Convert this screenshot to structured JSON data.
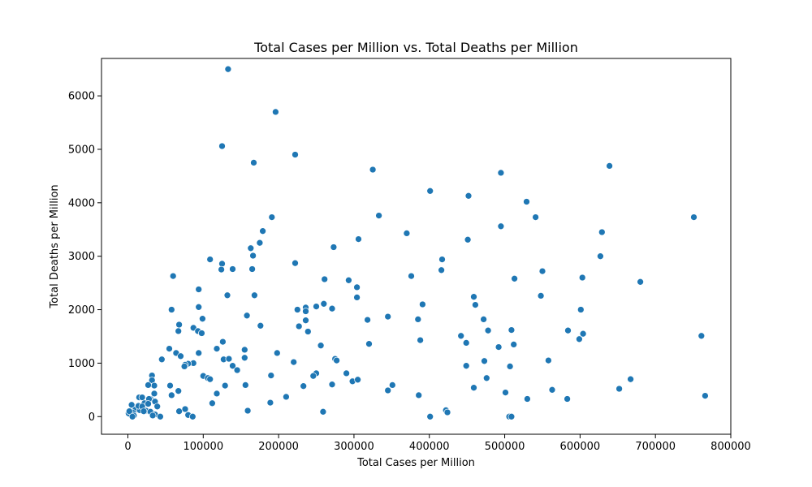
{
  "chart_data": {
    "type": "scatter",
    "title": "Total Cases per Million vs. Total Deaths per Million",
    "xlabel": "Total Cases per Million",
    "ylabel": "Total Deaths per Million",
    "xlim": [
      -35000,
      800000
    ],
    "ylim": [
      -330,
      6700
    ],
    "xticks": [
      0,
      100000,
      200000,
      300000,
      400000,
      500000,
      600000,
      700000,
      800000
    ],
    "xtick_labels": [
      "0",
      "100000",
      "200000",
      "300000",
      "400000",
      "500000",
      "600000",
      "700000",
      "800000"
    ],
    "yticks": [
      0,
      1000,
      2000,
      3000,
      4000,
      5000,
      6000
    ],
    "ytick_labels": [
      "0",
      "1000",
      "2000",
      "3000",
      "4000",
      "5000",
      "6000"
    ],
    "grid": false,
    "marker_color": "#1f77b4",
    "points": [
      [
        133000,
        6500
      ],
      [
        196000,
        5700
      ],
      [
        125000,
        5060
      ],
      [
        222000,
        4900
      ],
      [
        167000,
        4750
      ],
      [
        325000,
        4620
      ],
      [
        495000,
        4560
      ],
      [
        639000,
        4690
      ],
      [
        401000,
        4220
      ],
      [
        452000,
        4130
      ],
      [
        529000,
        4020
      ],
      [
        191000,
        3730
      ],
      [
        333000,
        3760
      ],
      [
        541000,
        3730
      ],
      [
        751000,
        3730
      ],
      [
        495000,
        3560
      ],
      [
        370000,
        3430
      ],
      [
        179000,
        3470
      ],
      [
        629000,
        3450
      ],
      [
        306000,
        3320
      ],
      [
        451000,
        3310
      ],
      [
        175000,
        3250
      ],
      [
        163000,
        3150
      ],
      [
        273000,
        3170
      ],
      [
        166000,
        3010
      ],
      [
        627000,
        3000
      ],
      [
        109000,
        2940
      ],
      [
        417000,
        2940
      ],
      [
        125000,
        2860
      ],
      [
        222000,
        2870
      ],
      [
        124000,
        2750
      ],
      [
        139000,
        2760
      ],
      [
        165000,
        2760
      ],
      [
        416000,
        2740
      ],
      [
        550000,
        2720
      ],
      [
        60000,
        2630
      ],
      [
        376000,
        2630
      ],
      [
        261000,
        2570
      ],
      [
        293000,
        2550
      ],
      [
        513000,
        2580
      ],
      [
        603000,
        2600
      ],
      [
        680000,
        2520
      ],
      [
        304000,
        2420
      ],
      [
        94000,
        2380
      ],
      [
        132000,
        2270
      ],
      [
        168000,
        2270
      ],
      [
        304000,
        2230
      ],
      [
        459000,
        2240
      ],
      [
        548000,
        2260
      ],
      [
        260000,
        2110
      ],
      [
        391000,
        2100
      ],
      [
        461000,
        2090
      ],
      [
        94000,
        2050
      ],
      [
        236000,
        2040
      ],
      [
        250000,
        2060
      ],
      [
        271000,
        2020
      ],
      [
        58000,
        2000
      ],
      [
        225000,
        2000
      ],
      [
        236000,
        1970
      ],
      [
        601000,
        2000
      ],
      [
        158000,
        1890
      ],
      [
        345000,
        1870
      ],
      [
        99000,
        1830
      ],
      [
        236000,
        1800
      ],
      [
        318000,
        1810
      ],
      [
        385000,
        1820
      ],
      [
        472000,
        1820
      ],
      [
        68000,
        1720
      ],
      [
        176000,
        1700
      ],
      [
        227000,
        1690
      ],
      [
        87000,
        1660
      ],
      [
        93000,
        1600
      ],
      [
        67000,
        1600
      ],
      [
        98000,
        1560
      ],
      [
        239000,
        1590
      ],
      [
        478000,
        1610
      ],
      [
        509000,
        1620
      ],
      [
        584000,
        1610
      ],
      [
        442000,
        1510
      ],
      [
        604000,
        1550
      ],
      [
        761000,
        1510
      ],
      [
        599000,
        1450
      ],
      [
        388000,
        1430
      ],
      [
        126000,
        1400
      ],
      [
        320000,
        1360
      ],
      [
        449000,
        1380
      ],
      [
        512000,
        1350
      ],
      [
        256000,
        1330
      ],
      [
        55000,
        1270
      ],
      [
        118000,
        1270
      ],
      [
        155000,
        1250
      ],
      [
        492000,
        1300
      ],
      [
        64000,
        1190
      ],
      [
        94000,
        1190
      ],
      [
        198000,
        1190
      ],
      [
        70000,
        1130
      ],
      [
        45000,
        1070
      ],
      [
        127000,
        1070
      ],
      [
        134000,
        1080
      ],
      [
        155000,
        1100
      ],
      [
        275000,
        1080
      ],
      [
        277000,
        1050
      ],
      [
        220000,
        1020
      ],
      [
        473000,
        1040
      ],
      [
        558000,
        1050
      ],
      [
        87000,
        1000
      ],
      [
        80000,
        990
      ],
      [
        76000,
        970
      ],
      [
        75000,
        940
      ],
      [
        139000,
        950
      ],
      [
        449000,
        950
      ],
      [
        507000,
        940
      ],
      [
        145000,
        870
      ],
      [
        250000,
        810
      ],
      [
        290000,
        810
      ],
      [
        246000,
        760
      ],
      [
        190000,
        770
      ],
      [
        100000,
        760
      ],
      [
        106000,
        720
      ],
      [
        109000,
        700
      ],
      [
        298000,
        660
      ],
      [
        305000,
        690
      ],
      [
        32000,
        770
      ],
      [
        32000,
        680
      ],
      [
        35000,
        580
      ],
      [
        27000,
        590
      ],
      [
        56000,
        580
      ],
      [
        67000,
        480
      ],
      [
        233000,
        570
      ],
      [
        271000,
        600
      ],
      [
        351000,
        590
      ],
      [
        129000,
        580
      ],
      [
        156000,
        590
      ],
      [
        459000,
        540
      ],
      [
        476000,
        720
      ],
      [
        667000,
        700
      ],
      [
        345000,
        490
      ],
      [
        386000,
        400
      ],
      [
        501000,
        450
      ],
      [
        563000,
        500
      ],
      [
        652000,
        520
      ],
      [
        530000,
        330
      ],
      [
        583000,
        330
      ],
      [
        766000,
        390
      ],
      [
        58000,
        400
      ],
      [
        118000,
        430
      ],
      [
        210000,
        370
      ],
      [
        15000,
        360
      ],
      [
        19000,
        360
      ],
      [
        30000,
        330
      ],
      [
        35000,
        430
      ],
      [
        36000,
        280
      ],
      [
        22000,
        250
      ],
      [
        14000,
        210
      ],
      [
        5000,
        220
      ],
      [
        10000,
        130
      ],
      [
        16000,
        120
      ],
      [
        24000,
        110
      ],
      [
        7000,
        70
      ],
      [
        3000,
        40
      ],
      [
        1000,
        60
      ],
      [
        8000,
        20
      ],
      [
        14000,
        200
      ],
      [
        19000,
        190
      ],
      [
        21000,
        100
      ],
      [
        28000,
        330
      ],
      [
        39000,
        190
      ],
      [
        27000,
        240
      ],
      [
        30000,
        90
      ],
      [
        36000,
        40
      ],
      [
        43000,
        0
      ],
      [
        33000,
        20
      ],
      [
        68000,
        100
      ],
      [
        76000,
        140
      ],
      [
        80000,
        30
      ],
      [
        86000,
        0
      ],
      [
        112000,
        250
      ],
      [
        159000,
        110
      ],
      [
        189000,
        260
      ],
      [
        259000,
        90
      ],
      [
        401000,
        0
      ],
      [
        422000,
        120
      ],
      [
        424000,
        80
      ],
      [
        506000,
        0
      ],
      [
        509000,
        0
      ],
      [
        2000,
        100
      ],
      [
        6000,
        0
      ]
    ]
  }
}
